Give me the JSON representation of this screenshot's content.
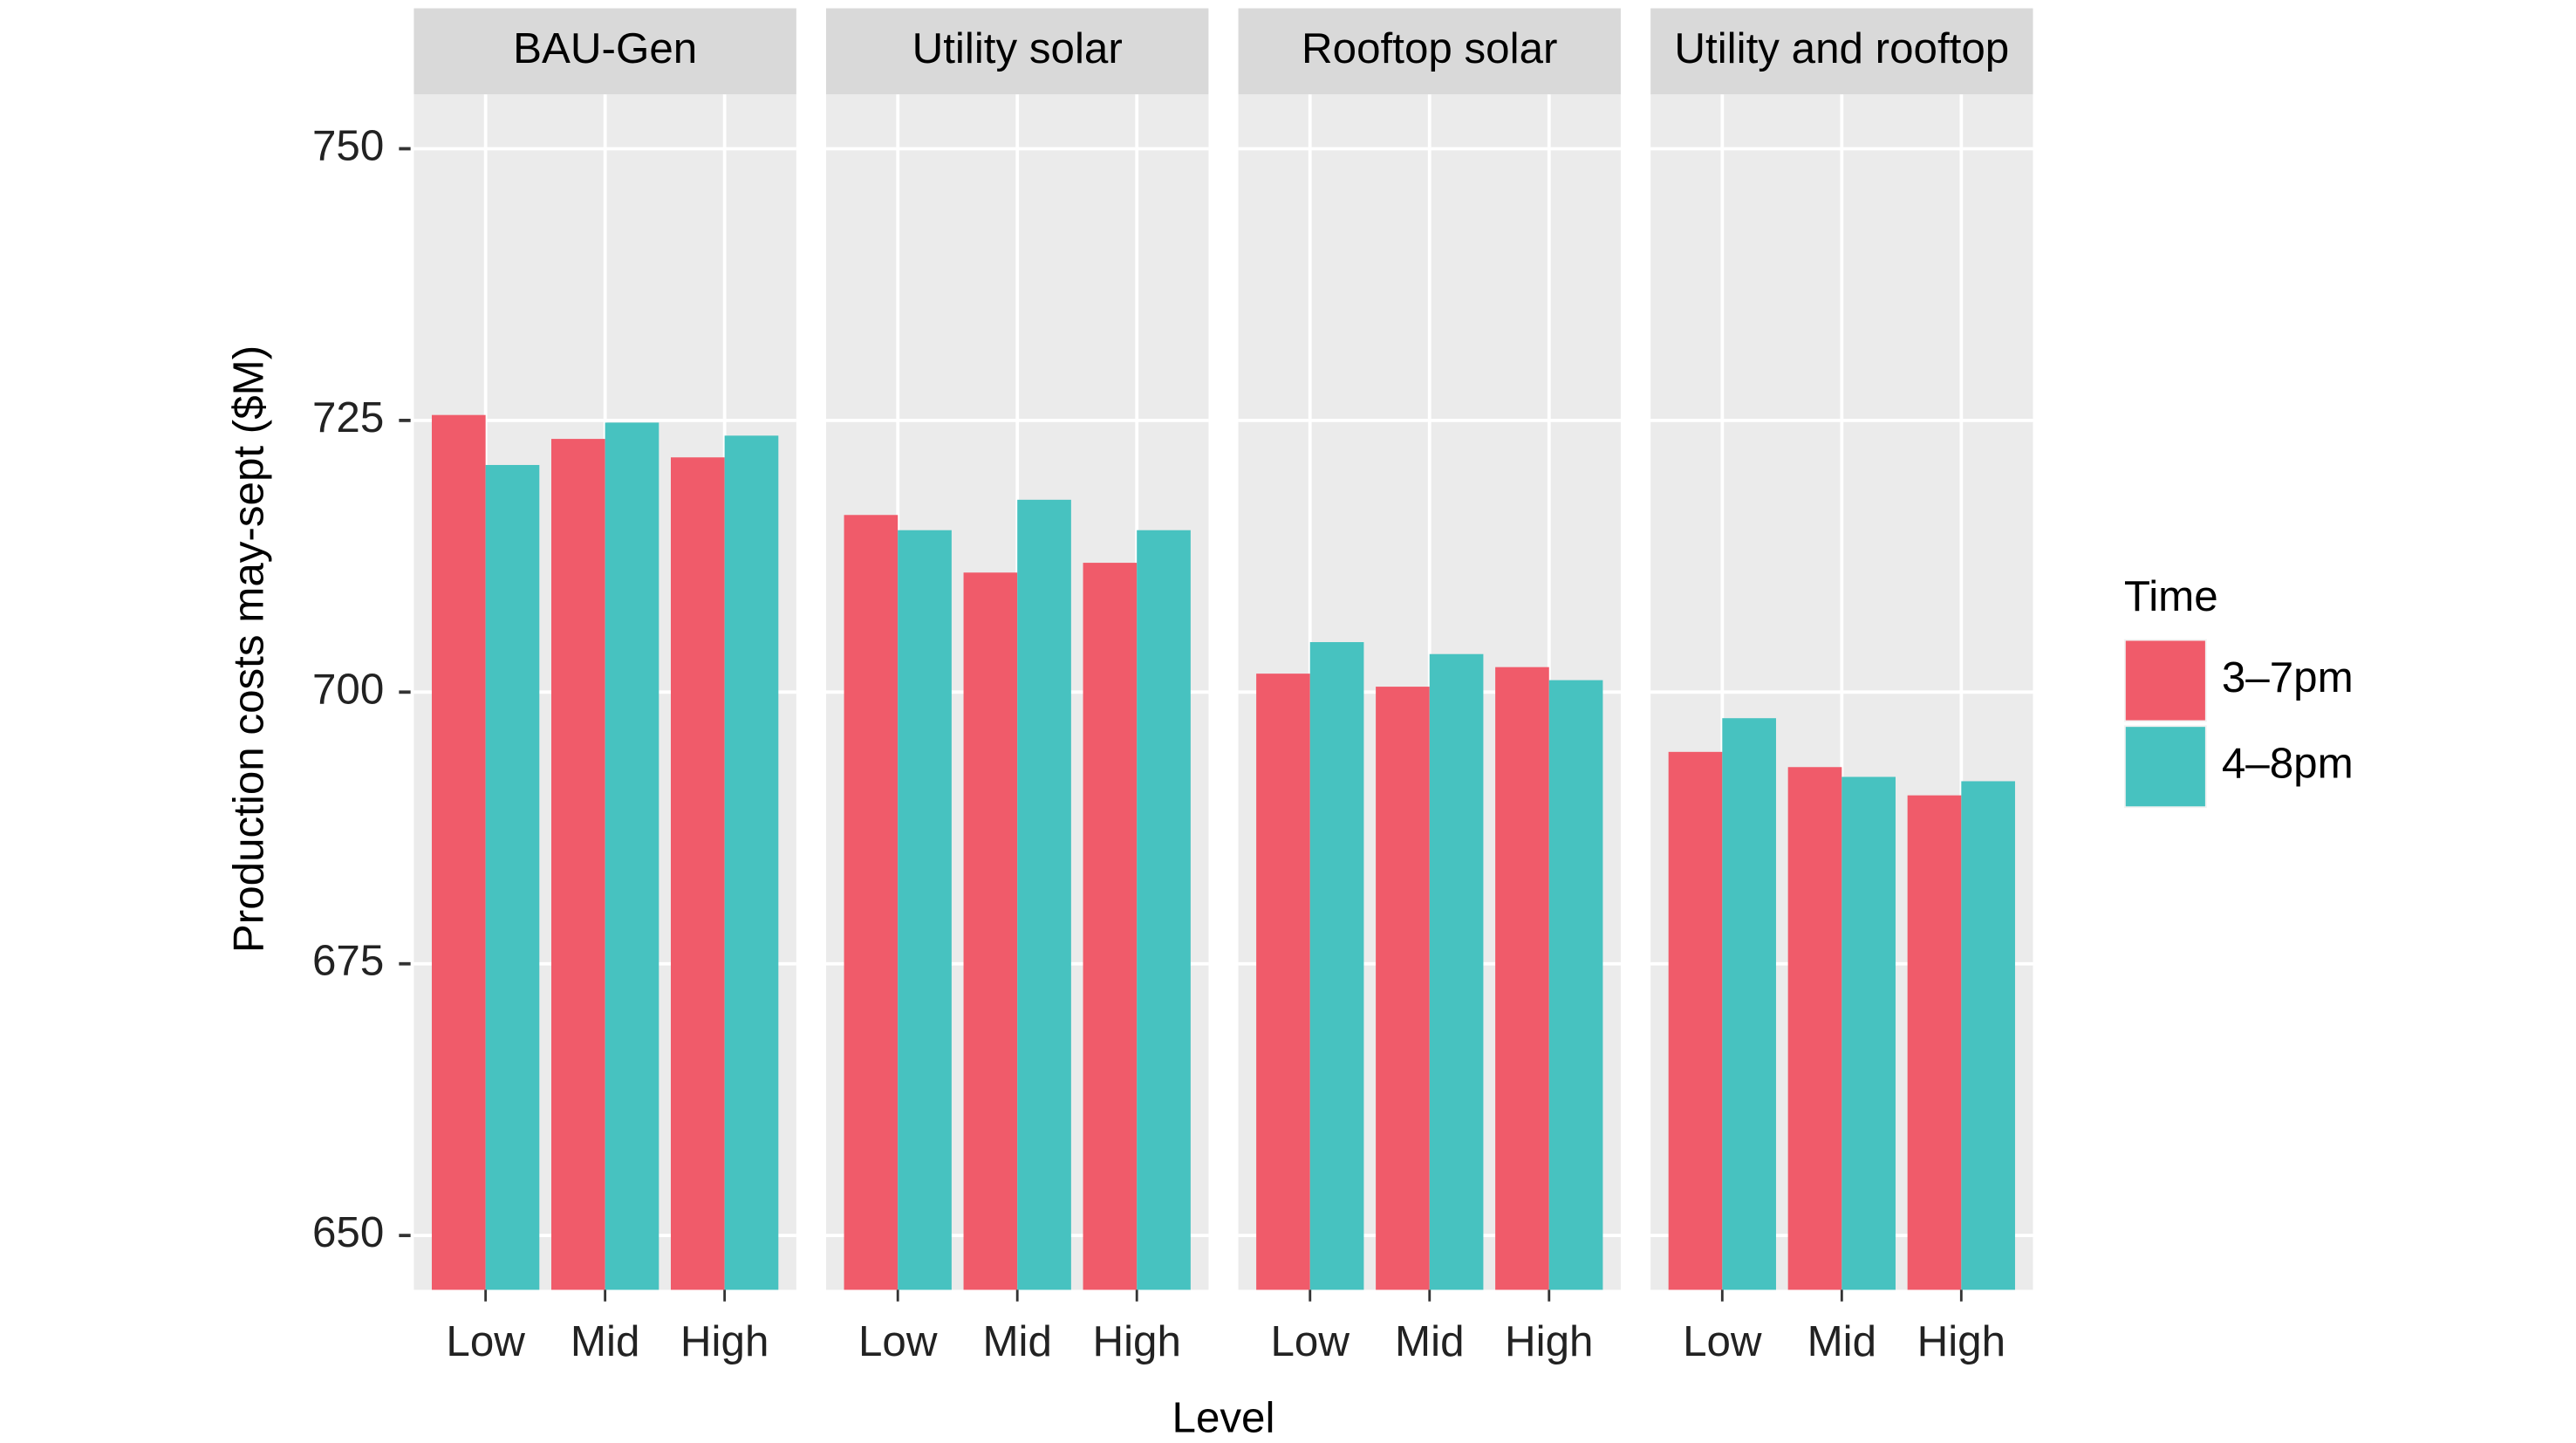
{
  "chart_data": {
    "type": "bar",
    "x_label": "Level",
    "y_label": "Production costs may-sept ($M)",
    "legend_title": "Time",
    "facets": [
      "BAU-Gen",
      "Utility solar",
      "Rooftop solar",
      "Utility and rooftop"
    ],
    "categories": [
      "Low",
      "Mid",
      "High"
    ],
    "series": [
      {
        "name": "3–7pm",
        "color": "#f05b6a",
        "values": [
          [
            725.5,
            723.3,
            721.6
          ],
          [
            716.3,
            711.0,
            711.9
          ],
          [
            701.7,
            700.5,
            702.3
          ],
          [
            694.5,
            693.1,
            690.5
          ]
        ]
      },
      {
        "name": "4–8pm",
        "color": "#47c2c0",
        "values": [
          [
            720.9,
            724.8,
            723.6
          ],
          [
            714.9,
            717.7,
            714.9
          ],
          [
            704.6,
            703.5,
            701.1
          ],
          [
            697.6,
            692.2,
            691.8
          ]
        ]
      }
    ],
    "ylim": [
      645,
      755
    ],
    "yticks": [
      650,
      675,
      700,
      725,
      750
    ],
    "grid": true
  }
}
